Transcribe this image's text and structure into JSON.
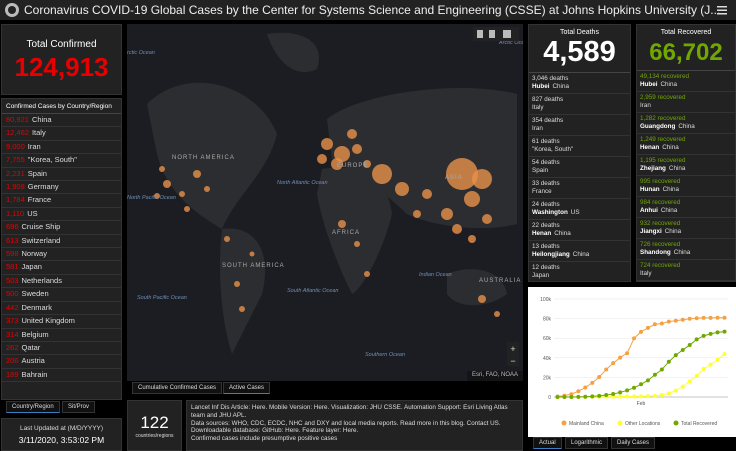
{
  "header": {
    "title": "Coronavirus COVID-19 Global Cases by the Center for Systems Science and Engineering (CSSE) at Johns Hopkins University (J..."
  },
  "confirmed": {
    "label": "Total Confirmed",
    "value": "124,913"
  },
  "country_list": {
    "title": "Confirmed Cases by Country/Region",
    "items": [
      {
        "count": "80,921",
        "name": "China"
      },
      {
        "count": "12,462",
        "name": "Italy"
      },
      {
        "count": "9,000",
        "name": "Iran"
      },
      {
        "count": "7,755",
        "name": "\"Korea, South\""
      },
      {
        "count": "2,231",
        "name": "Spain"
      },
      {
        "count": "1,908",
        "name": "Germany"
      },
      {
        "count": "1,784",
        "name": "France"
      },
      {
        "count": "1,110",
        "name": "US"
      },
      {
        "count": "696",
        "name": "Cruise Ship"
      },
      {
        "count": "613",
        "name": "Switzerland"
      },
      {
        "count": "598",
        "name": "Norway"
      },
      {
        "count": "581",
        "name": "Japan"
      },
      {
        "count": "503",
        "name": "Netherlands"
      },
      {
        "count": "500",
        "name": "Sweden"
      },
      {
        "count": "442",
        "name": "Denmark"
      },
      {
        "count": "373",
        "name": "United Kingdom"
      },
      {
        "count": "314",
        "name": "Belgium"
      },
      {
        "count": "262",
        "name": "Qatar"
      },
      {
        "count": "206",
        "name": "Austria"
      },
      {
        "count": "189",
        "name": "Bahrain"
      }
    ],
    "tabs": [
      "Country/Region",
      "Sit/Prov"
    ]
  },
  "last_updated": {
    "label": "Last Updated at (M/D/YYYY)",
    "value": "3/11/2020, 3:53:02 PM"
  },
  "map": {
    "labels": {
      "oceans": [
        "rctic Ocean",
        "Arctic Ocean",
        "North Atlantic Ocean",
        "North Pacific Ocean",
        "South Pacific Ocean",
        "South Atlantic Ocean",
        "Indian Ocean",
        "Southern Ocean"
      ],
      "continents": [
        "NORTH AMERICA",
        "EUROPE",
        "ASIA",
        "AFRICA",
        "SOUTH AMERICA",
        "AUSTRALIA"
      ]
    },
    "attribution": "Esri, FAO, NOAA",
    "tabs": [
      "Cumulative Confirmed Cases",
      "Active Cases"
    ]
  },
  "countries": {
    "value": "122",
    "label": "countries/regions"
  },
  "info": [
    "Lancet Inf Dis Article: Here. Mobile Version: Here. Visualization: JHU CSSE. Automation Support: Esri Living Atlas team and JHU APL.",
    "Data sources: WHO, CDC, ECDC, NHC and DXY and local media reports. Read more in this blog. Contact US.",
    "Downloadable database: GitHub: Here. Feature layer: Here.",
    "Confirmed cases include presumptive positive cases"
  ],
  "deaths": {
    "label": "Total Deaths",
    "value": "4,589",
    "items": [
      {
        "count": "3,046 deaths",
        "region": "Hubei",
        "country": "China"
      },
      {
        "count": "827 deaths",
        "country": "Italy"
      },
      {
        "count": "354 deaths",
        "country": "Iran"
      },
      {
        "count": "61 deaths",
        "country": "\"Korea, South\""
      },
      {
        "count": "54 deaths",
        "country": "Spain"
      },
      {
        "count": "33 deaths",
        "country": "France"
      },
      {
        "count": "24 deaths",
        "region": "Washington",
        "country": "US"
      },
      {
        "count": "22 deaths",
        "region": "Henan",
        "country": "China"
      },
      {
        "count": "13 deaths",
        "region": "Heilongjiang",
        "country": "China"
      },
      {
        "count": "12 deaths",
        "country": "Japan"
      }
    ]
  },
  "recovered": {
    "label": "Total Recovered",
    "value": "66,702",
    "items": [
      {
        "count": "49,134 recovered",
        "region": "Hubei",
        "country": "China"
      },
      {
        "count": "2,959 recovered",
        "country": "Iran"
      },
      {
        "count": "1,282 recovered",
        "region": "Guangdong",
        "country": "China"
      },
      {
        "count": "1,249 recovered",
        "region": "Henan",
        "country": "China"
      },
      {
        "count": "1,195 recovered",
        "region": "Zhejiang",
        "country": "China"
      },
      {
        "count": "995 recovered",
        "region": "Hunan",
        "country": "China"
      },
      {
        "count": "984 recovered",
        "region": "Anhui",
        "country": "China"
      },
      {
        "count": "932 recovered",
        "region": "Jiangxi",
        "country": "China"
      },
      {
        "count": "726 recovered",
        "region": "Shandong",
        "country": "China"
      },
      {
        "count": "724 recovered",
        "country": "Italy"
      }
    ]
  },
  "chart_data": {
    "type": "line",
    "categories": [
      null,
      null,
      null,
      null,
      null,
      null,
      null,
      null,
      null,
      null,
      null,
      null,
      "Feb",
      null,
      null,
      null,
      null,
      null,
      null,
      null,
      null,
      null,
      null,
      null,
      null
    ],
    "series": [
      {
        "name": "Mainland China",
        "color": "#f5a142",
        "values": [
          548,
          1400,
          2800,
          5900,
          9700,
          14400,
          20400,
          28000,
          34600,
          40200,
          44700,
          59800,
          66500,
          70500,
          74200,
          75000,
          76900,
          77800,
          78800,
          79800,
          80400,
          80700,
          80800,
          80900,
          80900
        ]
      },
      {
        "name": "Other Locations",
        "color": "#ffff33",
        "values": [
          7,
          20,
          50,
          100,
          150,
          200,
          270,
          320,
          390,
          440,
          500,
          560,
          690,
          930,
          1200,
          2100,
          3700,
          6500,
          10600,
          16000,
          21600,
          28700,
          33000,
          38000,
          43900
        ]
      },
      {
        "name": "Total Recovered",
        "color": "#70a800",
        "values": [
          28,
          40,
          60,
          140,
          300,
          600,
          1100,
          2000,
          3000,
          4700,
          6700,
          9400,
          13000,
          17000,
          22700,
          28000,
          36000,
          42700,
          48000,
          53000,
          58800,
          62400,
          64400,
          66000,
          66700
        ]
      }
    ],
    "ylim": [
      0,
      100000
    ],
    "yticks": [
      0,
      {
        "value": 20000,
        "label": "20k"
      },
      {
        "value": 40000,
        "label": "40k"
      },
      {
        "value": 60000,
        "label": "60k"
      },
      {
        "value": 80000,
        "label": "80k"
      },
      {
        "value": 100000,
        "label": "100k"
      }
    ],
    "tabs": [
      "Actual",
      "Logarithmic",
      "Daily Cases"
    ]
  }
}
